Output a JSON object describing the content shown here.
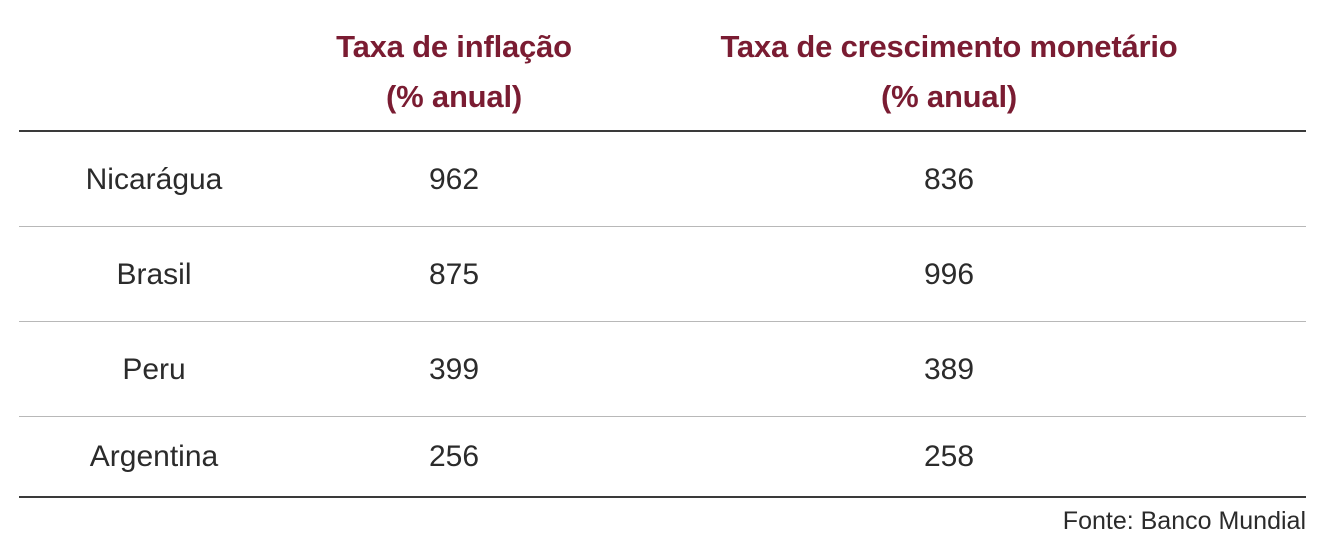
{
  "table": {
    "headers": {
      "col1_line1": "Taxa de inflação",
      "col1_line2": "(% anual)",
      "col2_line1": "Taxa de crescimento monetário",
      "col2_line2": "(% anual)"
    },
    "rows": [
      {
        "country": "Nicarágua",
        "inflation": "962",
        "money_growth": "836"
      },
      {
        "country": "Brasil",
        "inflation": "875",
        "money_growth": "996"
      },
      {
        "country": "Peru",
        "inflation": "399",
        "money_growth": "389"
      },
      {
        "country": "Argentina",
        "inflation": "256",
        "money_growth": "258"
      }
    ],
    "source": "Fonte: Banco Mundial"
  },
  "colors": {
    "header_text": "#7a1c32",
    "body_text": "#2b2b2b",
    "rule_dark": "#3a3a3a",
    "rule_light": "#b8b8b8"
  }
}
